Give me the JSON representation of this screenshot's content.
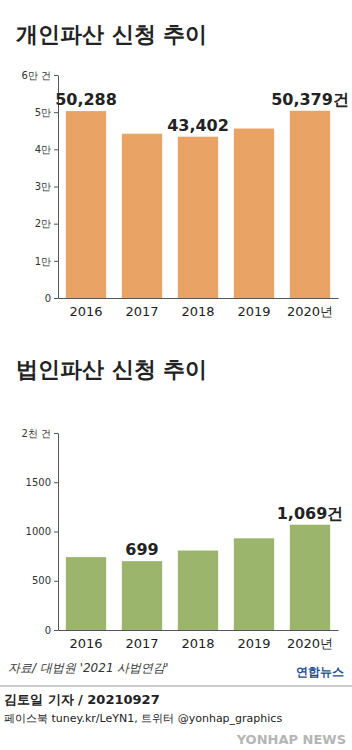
{
  "chart_data": [
    {
      "type": "bar",
      "title": "개인파산 신청 추이",
      "categories": [
        "2016",
        "2017",
        "2018",
        "2019",
        "2020년"
      ],
      "values": [
        50288,
        44200,
        43402,
        45600,
        50379
      ],
      "value_labels": [
        "50,288",
        null,
        "43,402",
        null,
        "50,379건"
      ],
      "data_labels": true,
      "color": "#e9a465",
      "ylim": [
        0,
        60000
      ],
      "yticks": [
        0,
        {
          "value": 10000,
          "label": "1만"
        },
        {
          "value": 20000,
          "label": "2만"
        },
        {
          "value": 30000,
          "label": "3만"
        },
        {
          "value": 40000,
          "label": "4만"
        },
        {
          "value": 50000,
          "label": "5만"
        },
        {
          "value": 60000,
          "label": "6만 건"
        }
      ],
      "grid": false
    },
    {
      "type": "bar",
      "title": "법인파산 신청 추이",
      "categories": [
        "2016",
        "2017",
        "2018",
        "2019",
        "2020년"
      ],
      "values": [
        740,
        699,
        807,
        931,
        1069
      ],
      "value_labels": [
        null,
        "699",
        null,
        null,
        "1,069건"
      ],
      "data_labels": true,
      "color": "#9cb56c",
      "ylim": [
        0,
        2000
      ],
      "yticks": [
        0,
        500,
        1000,
        1500,
        {
          "value": 2000,
          "label": "2천 건"
        }
      ],
      "grid": false
    }
  ],
  "footer": {
    "source": "자료/ 대법원 '2021 사법연감'",
    "logo": "연합뉴스",
    "byline": "김토일 기자 / 20210927",
    "social": "페이스북 tuney.kr/LeYN1, 트위터 @yonhap_graphics",
    "watermark": "YONHAP NEWS"
  }
}
